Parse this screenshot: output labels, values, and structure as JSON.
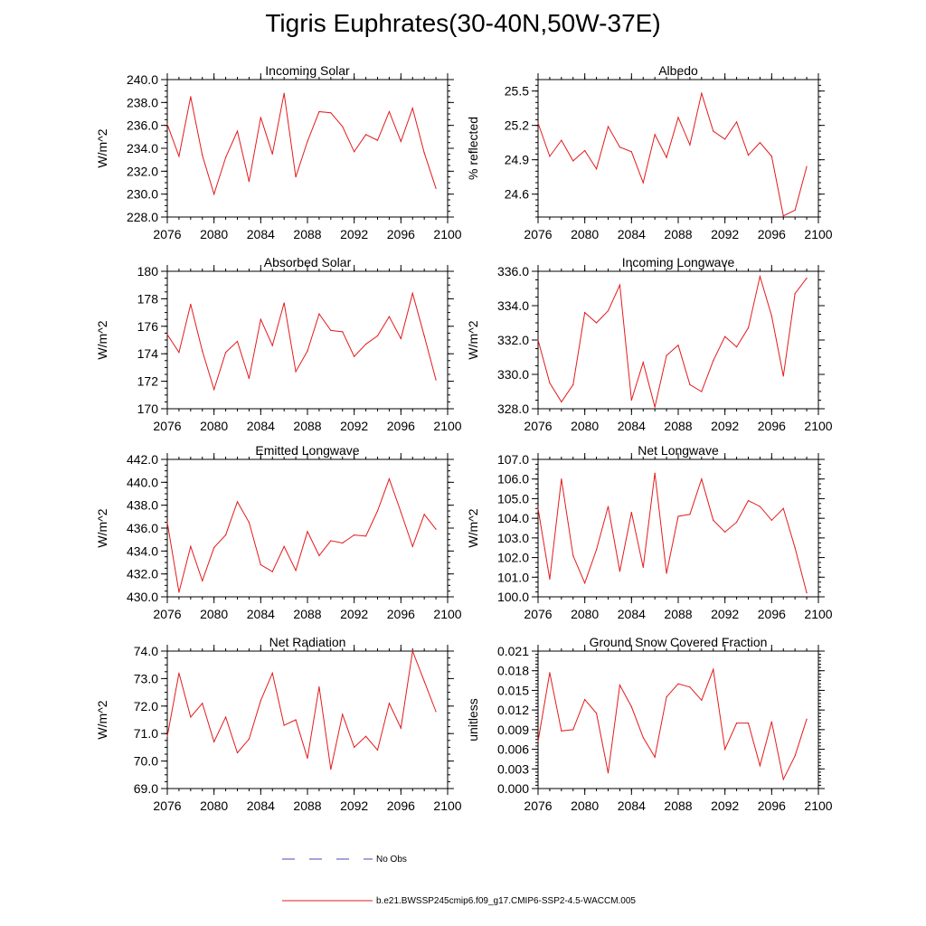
{
  "title": "Tigris Euphrates(30-40N,50W-37E)",
  "line_color": "#e41a1c",
  "obs_color": "#4a4ab0",
  "legend": {
    "obs_label": "No Obs",
    "model_label": "b.e21.BWSSP245cmip6.f09_g17.CMIP6-SSP2-4.5-WACCM.005"
  },
  "chart_data": [
    {
      "type": "line",
      "title": "Incoming Solar",
      "ylabel": "W/m^2",
      "xlim": [
        2076,
        2100
      ],
      "ylim": [
        228,
        240
      ],
      "x_ticks": [
        2076,
        2080,
        2084,
        2088,
        2092,
        2096,
        2100
      ],
      "y_ticks": [
        228.0,
        230.0,
        232.0,
        234.0,
        236.0,
        238.0,
        240.0
      ],
      "y_tick_labels": [
        "228.0",
        "230.0",
        "232.0",
        "234.0",
        "236.0",
        "238.0",
        "240.0"
      ],
      "y_minor": 0.5,
      "x": [
        2076,
        2077,
        2078,
        2079,
        2080,
        2081,
        2082,
        2083,
        2084,
        2085,
        2086,
        2087,
        2088,
        2089,
        2090,
        2091,
        2092,
        2093,
        2094,
        2095,
        2096,
        2097,
        2098,
        2099
      ],
      "y": [
        236.1,
        233.3,
        238.5,
        233.4,
        230.0,
        233.2,
        235.5,
        231.1,
        236.7,
        233.5,
        238.8,
        231.5,
        234.6,
        237.2,
        237.1,
        235.9,
        233.7,
        235.2,
        234.7,
        237.2,
        234.6,
        237.5,
        233.6,
        230.5
      ]
    },
    {
      "type": "line",
      "title": "Albedo",
      "ylabel": "% reflected",
      "xlim": [
        2076,
        2100
      ],
      "ylim": [
        24.4,
        25.6
      ],
      "x_ticks": [
        2076,
        2080,
        2084,
        2088,
        2092,
        2096,
        2100
      ],
      "y_ticks": [
        24.6,
        24.9,
        25.2,
        25.5
      ],
      "y_tick_labels": [
        "24.6",
        "24.9",
        "25.2",
        "25.5"
      ],
      "y_minor": 0.05,
      "x": [
        2076,
        2077,
        2078,
        2079,
        2080,
        2081,
        2082,
        2083,
        2084,
        2085,
        2086,
        2087,
        2088,
        2089,
        2090,
        2091,
        2092,
        2093,
        2094,
        2095,
        2096,
        2097,
        2098,
        2099
      ],
      "y": [
        25.22,
        24.93,
        25.07,
        24.89,
        24.98,
        24.82,
        25.19,
        25.01,
        24.97,
        24.7,
        25.12,
        24.92,
        25.27,
        25.03,
        25.48,
        25.15,
        25.08,
        25.23,
        24.94,
        25.05,
        24.93,
        24.41,
        24.46,
        24.84
      ]
    },
    {
      "type": "line",
      "title": "Absorbed Solar",
      "ylabel": "W/m^2",
      "xlim": [
        2076,
        2100
      ],
      "ylim": [
        170,
        180
      ],
      "x_ticks": [
        2076,
        2080,
        2084,
        2088,
        2092,
        2096,
        2100
      ],
      "y_ticks": [
        170,
        172,
        174,
        176,
        178,
        180
      ],
      "y_tick_labels": [
        "170",
        "172",
        "174",
        "176",
        "178",
        "180"
      ],
      "y_minor": 0.5,
      "x": [
        2076,
        2077,
        2078,
        2079,
        2080,
        2081,
        2082,
        2083,
        2084,
        2085,
        2086,
        2087,
        2088,
        2089,
        2090,
        2091,
        2092,
        2093,
        2094,
        2095,
        2096,
        2097,
        2098,
        2099
      ],
      "y": [
        175.4,
        174.1,
        177.6,
        174.2,
        171.4,
        174.1,
        174.9,
        172.2,
        176.5,
        174.6,
        177.7,
        172.7,
        174.2,
        176.9,
        175.7,
        175.6,
        173.8,
        174.7,
        175.3,
        176.7,
        175.1,
        178.4,
        175.3,
        172.1
      ]
    },
    {
      "type": "line",
      "title": "Incoming Longwave",
      "ylabel": "W/m^2",
      "xlim": [
        2076,
        2100
      ],
      "ylim": [
        328,
        336
      ],
      "x_ticks": [
        2076,
        2080,
        2084,
        2088,
        2092,
        2096,
        2100
      ],
      "y_ticks": [
        328.0,
        330.0,
        332.0,
        334.0,
        336.0
      ],
      "y_tick_labels": [
        "328.0",
        "330.0",
        "332.0",
        "334.0",
        "336.0"
      ],
      "y_minor": 0.5,
      "x": [
        2076,
        2077,
        2078,
        2079,
        2080,
        2081,
        2082,
        2083,
        2084,
        2085,
        2086,
        2087,
        2088,
        2089,
        2090,
        2091,
        2092,
        2093,
        2094,
        2095,
        2096,
        2097,
        2098,
        2099
      ],
      "y": [
        332.0,
        329.5,
        328.4,
        329.4,
        333.6,
        333.0,
        333.7,
        335.2,
        328.5,
        330.7,
        328.1,
        331.1,
        331.7,
        329.4,
        329.0,
        330.8,
        332.2,
        331.6,
        332.7,
        335.7,
        333.4,
        329.9,
        334.7,
        335.6
      ]
    },
    {
      "type": "line",
      "title": "Emitted Longwave",
      "ylabel": "W/m^2",
      "xlim": [
        2076,
        2100
      ],
      "ylim": [
        430,
        442
      ],
      "x_ticks": [
        2076,
        2080,
        2084,
        2088,
        2092,
        2096,
        2100
      ],
      "y_ticks": [
        430.0,
        432.0,
        434.0,
        436.0,
        438.0,
        440.0,
        442.0
      ],
      "y_tick_labels": [
        "430.0",
        "432.0",
        "434.0",
        "436.0",
        "438.0",
        "440.0",
        "442.0"
      ],
      "y_minor": 0.5,
      "x": [
        2076,
        2077,
        2078,
        2079,
        2080,
        2081,
        2082,
        2083,
        2084,
        2085,
        2086,
        2087,
        2088,
        2089,
        2090,
        2091,
        2092,
        2093,
        2094,
        2095,
        2096,
        2097,
        2098,
        2099
      ],
      "y": [
        436.5,
        430.4,
        434.4,
        431.4,
        434.3,
        435.4,
        438.3,
        436.5,
        432.8,
        432.2,
        434.4,
        432.3,
        435.7,
        433.6,
        434.9,
        434.7,
        435.4,
        435.3,
        437.5,
        440.3,
        437.4,
        434.4,
        437.2,
        435.9
      ]
    },
    {
      "type": "line",
      "title": "Net Longwave",
      "ylabel": "W/m^2",
      "xlim": [
        2076,
        2100
      ],
      "ylim": [
        100,
        107
      ],
      "x_ticks": [
        2076,
        2080,
        2084,
        2088,
        2092,
        2096,
        2100
      ],
      "y_ticks": [
        100.0,
        101.0,
        102.0,
        103.0,
        104.0,
        105.0,
        106.0,
        107.0
      ],
      "y_tick_labels": [
        "100.0",
        "101.0",
        "102.0",
        "103.0",
        "104.0",
        "105.0",
        "106.0",
        "107.0"
      ],
      "y_minor": 0.25,
      "x": [
        2076,
        2077,
        2078,
        2079,
        2080,
        2081,
        2082,
        2083,
        2084,
        2085,
        2086,
        2087,
        2088,
        2089,
        2090,
        2091,
        2092,
        2093,
        2094,
        2095,
        2096,
        2097,
        2098,
        2099
      ],
      "y": [
        104.5,
        100.9,
        106.0,
        102.1,
        100.7,
        102.4,
        104.6,
        101.3,
        104.3,
        101.5,
        106.3,
        101.2,
        104.1,
        104.2,
        106.0,
        103.9,
        103.3,
        103.8,
        104.9,
        104.6,
        103.9,
        104.5,
        102.5,
        100.2
      ]
    },
    {
      "type": "line",
      "title": "Net Radiation",
      "ylabel": "W/m^2",
      "xlim": [
        2076,
        2100
      ],
      "ylim": [
        69,
        74
      ],
      "x_ticks": [
        2076,
        2080,
        2084,
        2088,
        2092,
        2096,
        2100
      ],
      "y_ticks": [
        69.0,
        70.0,
        71.0,
        72.0,
        73.0,
        74.0
      ],
      "y_tick_labels": [
        "69.0",
        "70.0",
        "71.0",
        "72.0",
        "73.0",
        "74.0"
      ],
      "y_minor": 0.25,
      "x": [
        2076,
        2077,
        2078,
        2079,
        2080,
        2081,
        2082,
        2083,
        2084,
        2085,
        2086,
        2087,
        2088,
        2089,
        2090,
        2091,
        2092,
        2093,
        2094,
        2095,
        2096,
        2097,
        2098,
        2099
      ],
      "y": [
        70.9,
        73.2,
        71.6,
        72.1,
        70.7,
        71.6,
        70.3,
        70.8,
        72.2,
        73.2,
        71.3,
        71.5,
        70.1,
        72.7,
        69.7,
        71.7,
        70.5,
        70.9,
        70.4,
        72.1,
        71.2,
        74.0,
        72.9,
        71.8
      ]
    },
    {
      "type": "line",
      "title": "Ground Snow Covered Fraction",
      "ylabel": "unitless",
      "xlim": [
        2076,
        2100
      ],
      "ylim": [
        0.0,
        0.021
      ],
      "x_ticks": [
        2076,
        2080,
        2084,
        2088,
        2092,
        2096,
        2100
      ],
      "y_ticks": [
        0.0,
        0.003,
        0.006,
        0.009,
        0.012,
        0.015,
        0.018,
        0.021
      ],
      "y_tick_labels": [
        "0.000",
        "0.003",
        "0.006",
        "0.009",
        "0.012",
        "0.015",
        "0.018",
        "0.021"
      ],
      "y_minor": 0.0005,
      "x": [
        2076,
        2077,
        2078,
        2079,
        2080,
        2081,
        2082,
        2083,
        2084,
        2085,
        2086,
        2087,
        2088,
        2089,
        2090,
        2091,
        2092,
        2093,
        2094,
        2095,
        2096,
        2097,
        2098,
        2099
      ],
      "y": [
        0.0072,
        0.0177,
        0.0088,
        0.009,
        0.0136,
        0.0115,
        0.0024,
        0.0158,
        0.0125,
        0.0078,
        0.0048,
        0.014,
        0.016,
        0.0155,
        0.0135,
        0.0182,
        0.006,
        0.01,
        0.01,
        0.0035,
        0.0102,
        0.0014,
        0.005,
        0.0106
      ]
    }
  ]
}
